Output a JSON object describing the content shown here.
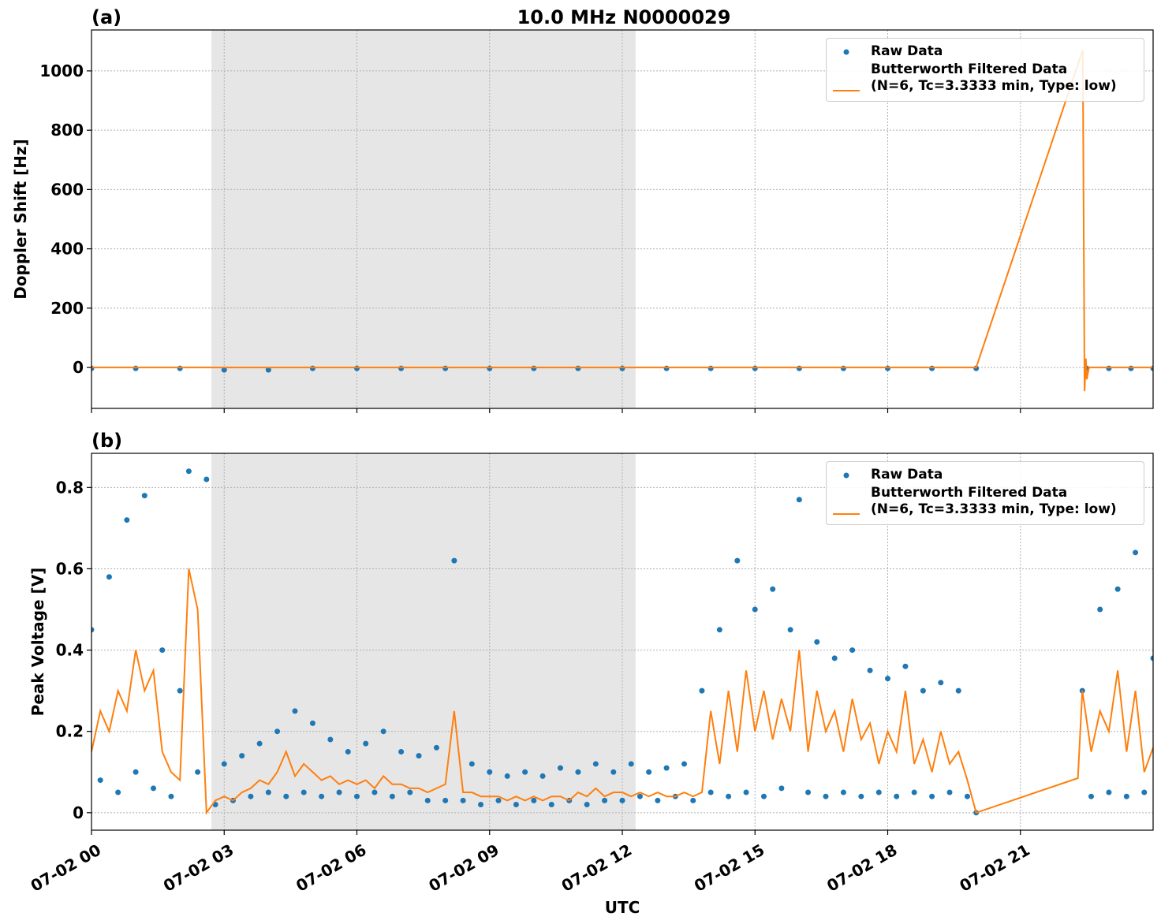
{
  "chart_data": [
    {
      "type": "line",
      "title": "10.0 MHz N0000029",
      "panel_label": "(a)",
      "ylabel": "Doppler Shift [Hz]",
      "ylim": [
        -138,
        1138
      ],
      "yticks": [
        0,
        200,
        400,
        600,
        800,
        1000
      ],
      "grid": true,
      "legend": "upper right",
      "shaded_span": [
        2.71,
        12.3
      ],
      "shade_color": "#e6e6e6",
      "series": [
        {
          "name": "Raw Data",
          "type": "scatter",
          "color": "#1f77b4",
          "x": [
            0,
            1,
            2,
            3,
            4,
            5,
            6,
            7,
            8,
            9,
            10,
            11,
            12,
            13,
            14,
            15,
            16,
            17,
            18,
            19,
            20,
            22.5,
            23,
            23.5,
            24
          ],
          "values": [
            -3,
            -3,
            -3,
            -8,
            -8,
            -3,
            -3,
            -3,
            -3,
            -3,
            -3,
            -3,
            -3,
            -3,
            -3,
            -3,
            -3,
            -3,
            -3,
            -3,
            -3,
            -3,
            -3,
            -3,
            -3
          ]
        },
        {
          "name": "Butterworth Filtered Data\n(N=6, Tc=3.3333 min, Type: low)",
          "type": "line",
          "color": "#ff7f0e",
          "x": [
            0,
            5,
            10,
            15,
            20.0,
            22.41,
            22.45,
            22.48,
            22.5,
            22.55,
            24
          ],
          "values": [
            0,
            0,
            0,
            0,
            0,
            1070,
            -80,
            30,
            -40,
            0,
            0
          ]
        }
      ]
    },
    {
      "type": "line",
      "panel_label": "(b)",
      "ylabel": "Peak Voltage [V]",
      "xlabel": "UTC",
      "xlim": [
        0,
        24
      ],
      "xticks": [
        {
          "value": 0,
          "label": "07-02 00"
        },
        {
          "value": 3,
          "label": "07-02 03"
        },
        {
          "value": 6,
          "label": "07-02 06"
        },
        {
          "value": 9,
          "label": "07-02 09"
        },
        {
          "value": 12,
          "label": "07-02 12"
        },
        {
          "value": 15,
          "label": "07-02 15"
        },
        {
          "value": 18,
          "label": "07-02 18"
        },
        {
          "value": 21,
          "label": "07-02 21"
        }
      ],
      "ylim": [
        -0.043,
        0.884
      ],
      "yticks": [
        0.0,
        0.2,
        0.4,
        0.6,
        0.8
      ],
      "grid": true,
      "legend": "upper right",
      "shaded_span": [
        2.71,
        12.3
      ],
      "shade_color": "#e6e6e6",
      "series": [
        {
          "name": "Raw Data",
          "type": "scatter",
          "color": "#1f77b4",
          "x": [
            0,
            0.2,
            0.4,
            0.6,
            0.8,
            1,
            1.2,
            1.4,
            1.6,
            1.8,
            2,
            2.2,
            2.4,
            2.6,
            2.8,
            3,
            3.2,
            3.4,
            3.6,
            3.8,
            4,
            4.2,
            4.4,
            4.6,
            4.8,
            5,
            5.2,
            5.4,
            5.6,
            5.8,
            6,
            6.2,
            6.4,
            6.6,
            6.8,
            7,
            7.2,
            7.4,
            7.6,
            7.8,
            8,
            8.2,
            8.4,
            8.6,
            8.8,
            9,
            9.2,
            9.4,
            9.6,
            9.8,
            10,
            10.2,
            10.4,
            10.6,
            10.8,
            11,
            11.2,
            11.4,
            11.6,
            11.8,
            12,
            12.2,
            12.4,
            12.6,
            12.8,
            13,
            13.2,
            13.4,
            13.6,
            13.8,
            14,
            14.2,
            14.4,
            14.6,
            14.8,
            15,
            15.2,
            15.4,
            15.6,
            15.8,
            16,
            16.2,
            16.4,
            16.6,
            16.8,
            17,
            17.2,
            17.4,
            17.6,
            17.8,
            18,
            18.2,
            18.4,
            18.6,
            18.8,
            19,
            19.2,
            19.4,
            19.6,
            19.8,
            20,
            22.4,
            22.6,
            22.8,
            23,
            23.2,
            23.4,
            23.6,
            23.8,
            24
          ],
          "values": [
            0.45,
            0.08,
            0.58,
            0.05,
            0.72,
            0.1,
            0.78,
            0.06,
            0.4,
            0.04,
            0.3,
            0.84,
            0.1,
            0.82,
            0.02,
            0.12,
            0.03,
            0.14,
            0.04,
            0.17,
            0.05,
            0.2,
            0.04,
            0.25,
            0.05,
            0.22,
            0.04,
            0.18,
            0.05,
            0.15,
            0.04,
            0.17,
            0.05,
            0.2,
            0.04,
            0.15,
            0.05,
            0.14,
            0.03,
            0.16,
            0.03,
            0.62,
            0.03,
            0.12,
            0.02,
            0.1,
            0.03,
            0.09,
            0.02,
            0.1,
            0.03,
            0.09,
            0.02,
            0.11,
            0.03,
            0.1,
            0.02,
            0.12,
            0.03,
            0.1,
            0.03,
            0.12,
            0.04,
            0.1,
            0.03,
            0.11,
            0.04,
            0.12,
            0.03,
            0.3,
            0.05,
            0.45,
            0.04,
            0.62,
            0.05,
            0.5,
            0.04,
            0.55,
            0.06,
            0.45,
            0.77,
            0.05,
            0.42,
            0.04,
            0.38,
            0.05,
            0.4,
            0.04,
            0.35,
            0.05,
            0.33,
            0.04,
            0.36,
            0.05,
            0.3,
            0.04,
            0.32,
            0.05,
            0.3,
            0.04,
            0.0,
            0.3,
            0.04,
            0.5,
            0.05,
            0.55,
            0.04,
            0.64,
            0.05,
            0.38
          ]
        },
        {
          "name": "Butterworth Filtered Data\n(N=6, Tc=3.3333 min, Type: low)",
          "type": "line",
          "color": "#ff7f0e",
          "x": [
            0,
            0.2,
            0.4,
            0.6,
            0.8,
            1,
            1.2,
            1.4,
            1.6,
            1.8,
            2,
            2.2,
            2.4,
            2.6,
            2.8,
            3,
            3.2,
            3.4,
            3.6,
            3.8,
            4,
            4.2,
            4.4,
            4.6,
            4.8,
            5,
            5.2,
            5.4,
            5.6,
            5.8,
            6,
            6.2,
            6.4,
            6.6,
            6.8,
            7,
            7.2,
            7.4,
            7.6,
            7.8,
            8,
            8.2,
            8.4,
            8.6,
            8.8,
            9,
            9.2,
            9.4,
            9.6,
            9.8,
            10,
            10.2,
            10.4,
            10.6,
            10.8,
            11,
            11.2,
            11.4,
            11.6,
            11.8,
            12,
            12.2,
            12.4,
            12.6,
            12.8,
            13,
            13.2,
            13.4,
            13.6,
            13.8,
            14,
            14.2,
            14.4,
            14.6,
            14.8,
            15,
            15.2,
            15.4,
            15.6,
            15.8,
            16,
            16.2,
            16.4,
            16.6,
            16.8,
            17,
            17.2,
            17.4,
            17.6,
            17.8,
            18,
            18.2,
            18.4,
            18.6,
            18.8,
            19,
            19.2,
            19.4,
            19.6,
            19.8,
            20,
            22.3,
            22.4,
            22.6,
            22.8,
            23,
            23.2,
            23.4,
            23.6,
            23.8,
            24
          ],
          "values": [
            0.15,
            0.25,
            0.2,
            0.3,
            0.25,
            0.4,
            0.3,
            0.35,
            0.15,
            0.1,
            0.08,
            0.6,
            0.5,
            0.0,
            0.03,
            0.04,
            0.03,
            0.05,
            0.06,
            0.08,
            0.07,
            0.1,
            0.15,
            0.09,
            0.12,
            0.1,
            0.08,
            0.09,
            0.07,
            0.08,
            0.07,
            0.08,
            0.06,
            0.09,
            0.07,
            0.07,
            0.06,
            0.06,
            0.05,
            0.06,
            0.07,
            0.25,
            0.05,
            0.05,
            0.04,
            0.04,
            0.04,
            0.03,
            0.04,
            0.03,
            0.04,
            0.03,
            0.04,
            0.04,
            0.03,
            0.05,
            0.04,
            0.06,
            0.04,
            0.05,
            0.05,
            0.04,
            0.05,
            0.04,
            0.05,
            0.04,
            0.04,
            0.05,
            0.04,
            0.05,
            0.25,
            0.12,
            0.3,
            0.15,
            0.35,
            0.2,
            0.3,
            0.18,
            0.28,
            0.2,
            0.4,
            0.15,
            0.3,
            0.2,
            0.25,
            0.15,
            0.28,
            0.18,
            0.22,
            0.12,
            0.2,
            0.15,
            0.3,
            0.12,
            0.18,
            0.1,
            0.2,
            0.12,
            0.15,
            0.08,
            0.0,
            0.085,
            0.3,
            0.15,
            0.25,
            0.2,
            0.35,
            0.15,
            0.3,
            0.1,
            0.16
          ]
        }
      ]
    }
  ]
}
